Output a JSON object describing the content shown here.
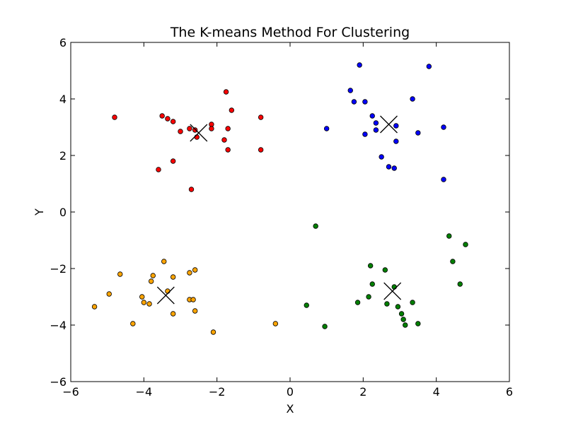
{
  "chart_data": {
    "type": "scatter",
    "title": "The K-means Method For Clustering",
    "xlabel": "X",
    "ylabel": "Y",
    "xlim": [
      -6,
      6
    ],
    "ylim": [
      -6,
      6
    ],
    "xticks": [
      -6,
      -4,
      -2,
      0,
      2,
      4,
      6
    ],
    "yticks": [
      -6,
      -4,
      -2,
      0,
      2,
      4,
      6
    ],
    "xtick_labels": [
      "−6",
      "−4",
      "−2",
      "0",
      "2",
      "4",
      "6"
    ],
    "ytick_labels": [
      "−6",
      "−4",
      "−2",
      "0",
      "2",
      "4",
      "6"
    ],
    "grid": false,
    "series": [
      {
        "color": "#ff0000",
        "points": [
          [
            -4.8,
            3.35
          ],
          [
            -3.5,
            3.4
          ],
          [
            -3.35,
            3.3
          ],
          [
            -3.2,
            3.2
          ],
          [
            -3.0,
            2.85
          ],
          [
            -2.75,
            2.95
          ],
          [
            -2.6,
            2.9
          ],
          [
            -2.55,
            2.65
          ],
          [
            -2.15,
            3.1
          ],
          [
            -2.15,
            2.95
          ],
          [
            -1.75,
            4.25
          ],
          [
            -1.6,
            3.6
          ],
          [
            -1.7,
            2.95
          ],
          [
            -1.8,
            2.55
          ],
          [
            -1.7,
            2.2
          ],
          [
            -0.8,
            3.35
          ],
          [
            -0.8,
            2.2
          ],
          [
            -3.6,
            1.5
          ],
          [
            -3.2,
            1.8
          ],
          [
            -2.7,
            0.8
          ]
        ]
      },
      {
        "color": "#0000ff",
        "points": [
          [
            1.9,
            5.2
          ],
          [
            3.8,
            5.15
          ],
          [
            1.65,
            4.3
          ],
          [
            1.75,
            3.9
          ],
          [
            2.05,
            3.9
          ],
          [
            3.35,
            4.0
          ],
          [
            2.25,
            3.4
          ],
          [
            2.35,
            3.15
          ],
          [
            2.35,
            2.9
          ],
          [
            2.05,
            2.75
          ],
          [
            1.0,
            2.95
          ],
          [
            2.9,
            3.05
          ],
          [
            2.9,
            2.5
          ],
          [
            3.5,
            2.8
          ],
          [
            4.2,
            3.0
          ],
          [
            2.5,
            1.95
          ],
          [
            2.7,
            1.6
          ],
          [
            2.85,
            1.55
          ],
          [
            4.2,
            1.15
          ]
        ]
      },
      {
        "color": "#008000",
        "points": [
          [
            0.7,
            -0.5
          ],
          [
            4.35,
            -0.85
          ],
          [
            4.8,
            -1.15
          ],
          [
            4.45,
            -1.75
          ],
          [
            4.65,
            -2.55
          ],
          [
            2.2,
            -1.9
          ],
          [
            2.6,
            -2.05
          ],
          [
            2.25,
            -2.55
          ],
          [
            2.15,
            -3.0
          ],
          [
            1.85,
            -3.2
          ],
          [
            2.65,
            -3.25
          ],
          [
            2.85,
            -2.65
          ],
          [
            2.95,
            -3.35
          ],
          [
            3.05,
            -3.6
          ],
          [
            3.1,
            -3.8
          ],
          [
            3.15,
            -4.0
          ],
          [
            3.35,
            -3.2
          ],
          [
            3.5,
            -3.95
          ],
          [
            0.45,
            -3.3
          ],
          [
            0.95,
            -4.05
          ]
        ]
      },
      {
        "color": "#ffa500",
        "points": [
          [
            -3.45,
            -1.75
          ],
          [
            -4.65,
            -2.2
          ],
          [
            -3.75,
            -2.25
          ],
          [
            -3.8,
            -2.45
          ],
          [
            -3.2,
            -2.3
          ],
          [
            -2.75,
            -2.15
          ],
          [
            -2.6,
            -2.05
          ],
          [
            -3.35,
            -2.8
          ],
          [
            -4.95,
            -2.9
          ],
          [
            -4.05,
            -3.0
          ],
          [
            -4.0,
            -3.2
          ],
          [
            -3.85,
            -3.25
          ],
          [
            -2.75,
            -3.1
          ],
          [
            -2.65,
            -3.1
          ],
          [
            -2.6,
            -3.5
          ],
          [
            -3.2,
            -3.6
          ],
          [
            -5.35,
            -3.35
          ],
          [
            -4.3,
            -3.95
          ],
          [
            -2.1,
            -4.25
          ],
          [
            -0.4,
            -3.95
          ]
        ]
      }
    ],
    "centroids": [
      [
        -2.5,
        2.8
      ],
      [
        2.7,
        3.1
      ],
      [
        2.8,
        -2.8
      ],
      [
        -3.4,
        -2.95
      ]
    ]
  }
}
